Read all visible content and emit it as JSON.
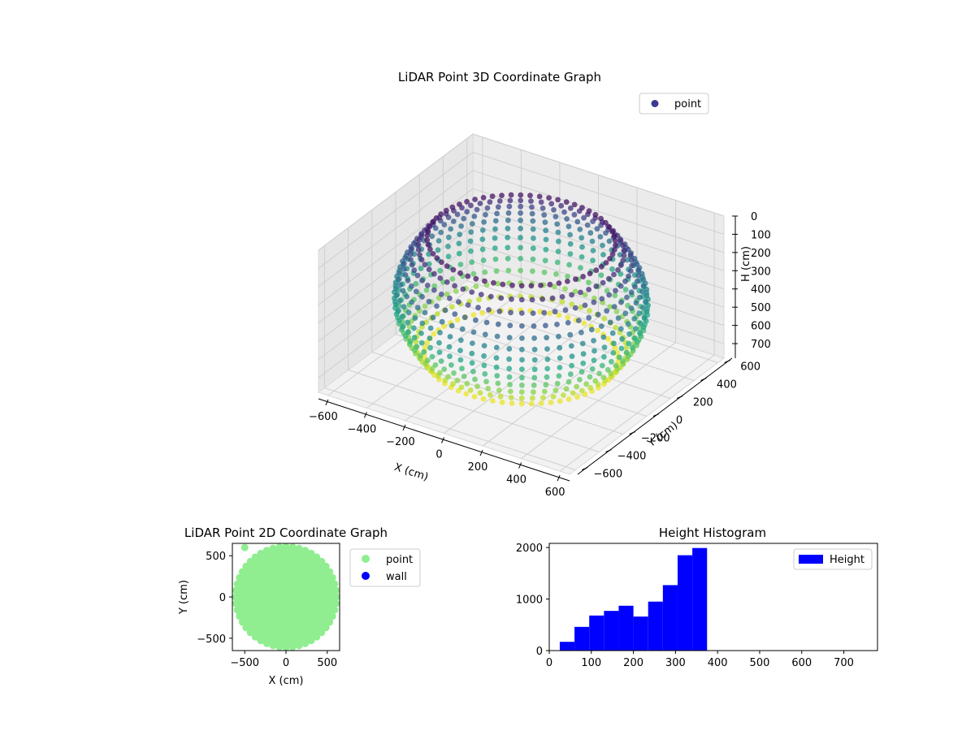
{
  "chart_data": [
    {
      "type": "scatter",
      "title": "LiDAR Point 3D Coordinate Graph",
      "xlabel": "X (cm)",
      "ylabel": "Y (cm)",
      "zlabel": "H (cm)",
      "xlim": [
        -650,
        650
      ],
      "ylim": [
        -650,
        650
      ],
      "zlim": [
        780,
        0
      ],
      "z_inverted": true,
      "xticks": [
        -600,
        -400,
        -200,
        0,
        200,
        400,
        600
      ],
      "yticks": [
        -600,
        -400,
        -200,
        0,
        200,
        400,
        600
      ],
      "zticks": [
        0,
        100,
        200,
        300,
        400,
        500,
        600,
        700
      ],
      "colormap": "viridis",
      "legend": {
        "placement": "top-right",
        "entries": [
          "point"
        ]
      },
      "series": [
        {
          "name": "point",
          "color": "#3b3b8f",
          "shape": "ring of vertical arcs",
          "radius_range": [
            350,
            620
          ],
          "height_range": [
            0,
            700
          ]
        }
      ]
    },
    {
      "type": "scatter",
      "title": "LiDAR Point 2D Coordinate Graph",
      "xlabel": "X (cm)",
      "ylabel": "Y (cm)",
      "xlim": [
        -650,
        650
      ],
      "ylim": [
        -650,
        650
      ],
      "xticks": [
        -500,
        0,
        500
      ],
      "yticks": [
        -500,
        0,
        500
      ],
      "legend": {
        "placement": "outside-right",
        "entries": [
          "point",
          "wall"
        ]
      },
      "series": [
        {
          "name": "point",
          "color": "#90ee90",
          "shape": "filled disk",
          "radius": 620,
          "outlier": [
            -500,
            600
          ]
        },
        {
          "name": "wall",
          "color": "#0000ff",
          "points": []
        }
      ]
    },
    {
      "type": "bar",
      "title": "Height Histogram",
      "xlabel": "",
      "ylabel": "",
      "xlim": [
        0,
        780
      ],
      "ylim": [
        0,
        2080
      ],
      "xticks": [
        0,
        100,
        200,
        300,
        400,
        500,
        600,
        700
      ],
      "yticks": [
        0,
        1000,
        2000
      ],
      "legend": {
        "placement": "top-right",
        "entries": [
          "Height"
        ]
      },
      "series": [
        {
          "name": "Height",
          "color": "#0000ff",
          "bins": [
            [
              25,
              60,
              170
            ],
            [
              60,
              95,
              460
            ],
            [
              95,
              130,
              680
            ],
            [
              130,
              165,
              770
            ],
            [
              165,
              200,
              870
            ],
            [
              200,
              235,
              660
            ],
            [
              235,
              270,
              950
            ],
            [
              270,
              305,
              1270
            ],
            [
              305,
              340,
              1850
            ],
            [
              340,
              375,
              1990
            ]
          ]
        }
      ]
    }
  ]
}
